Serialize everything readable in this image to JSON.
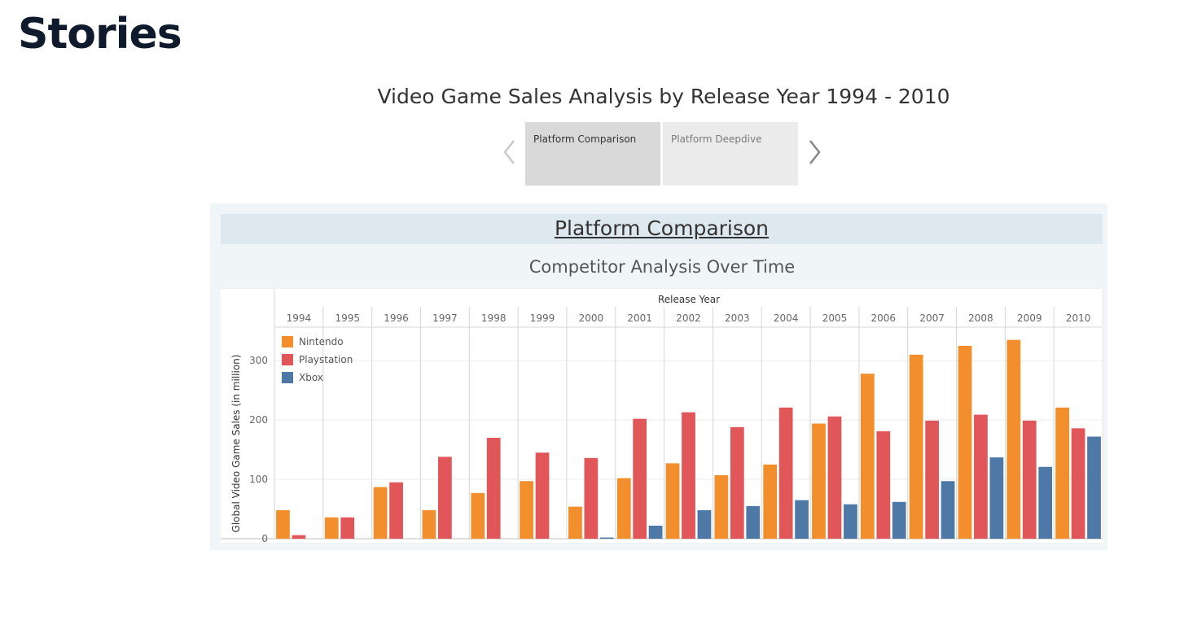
{
  "page": {
    "title": "Stories"
  },
  "story": {
    "title": "Video Game Sales Analysis by Release Year 1994 - 2010",
    "points": [
      "Platform Comparison",
      "Platform Deepdive"
    ],
    "prev_icon": "chevron-left-icon",
    "next_icon": "chevron-right-icon"
  },
  "dashboard": {
    "title": "Platform Comparison",
    "subtitle": "Competitor Analysis Over Time"
  },
  "chart_data": {
    "type": "bar",
    "xlabel": "Release Year",
    "ylabel": "Global Video Game Sales (in million)",
    "ylim": [
      0,
      340
    ],
    "yticks": [
      0,
      100,
      200,
      300
    ],
    "grid": "horizontal lines and vertical separators between years",
    "legend_placement": "top-left",
    "categories": [
      "1994",
      "1995",
      "1996",
      "1997",
      "1998",
      "1999",
      "2000",
      "2001",
      "2002",
      "2003",
      "2004",
      "2005",
      "2006",
      "2007",
      "2008",
      "2009",
      "2010"
    ],
    "series": [
      {
        "name": "Nintendo",
        "color": "#f28e2b",
        "values": [
          48,
          36,
          87,
          48,
          77,
          97,
          54,
          102,
          127,
          107,
          125,
          194,
          278,
          310,
          325,
          335,
          221
        ]
      },
      {
        "name": "Playstation",
        "color": "#e15759",
        "values": [
          6,
          36,
          95,
          138,
          170,
          145,
          136,
          202,
          213,
          188,
          221,
          206,
          181,
          199,
          209,
          199,
          186
        ]
      },
      {
        "name": "Xbox",
        "color": "#4e79a7",
        "values": [
          null,
          null,
          null,
          null,
          null,
          null,
          2,
          22,
          48,
          55,
          65,
          58,
          62,
          97,
          137,
          121,
          172
        ]
      }
    ]
  }
}
